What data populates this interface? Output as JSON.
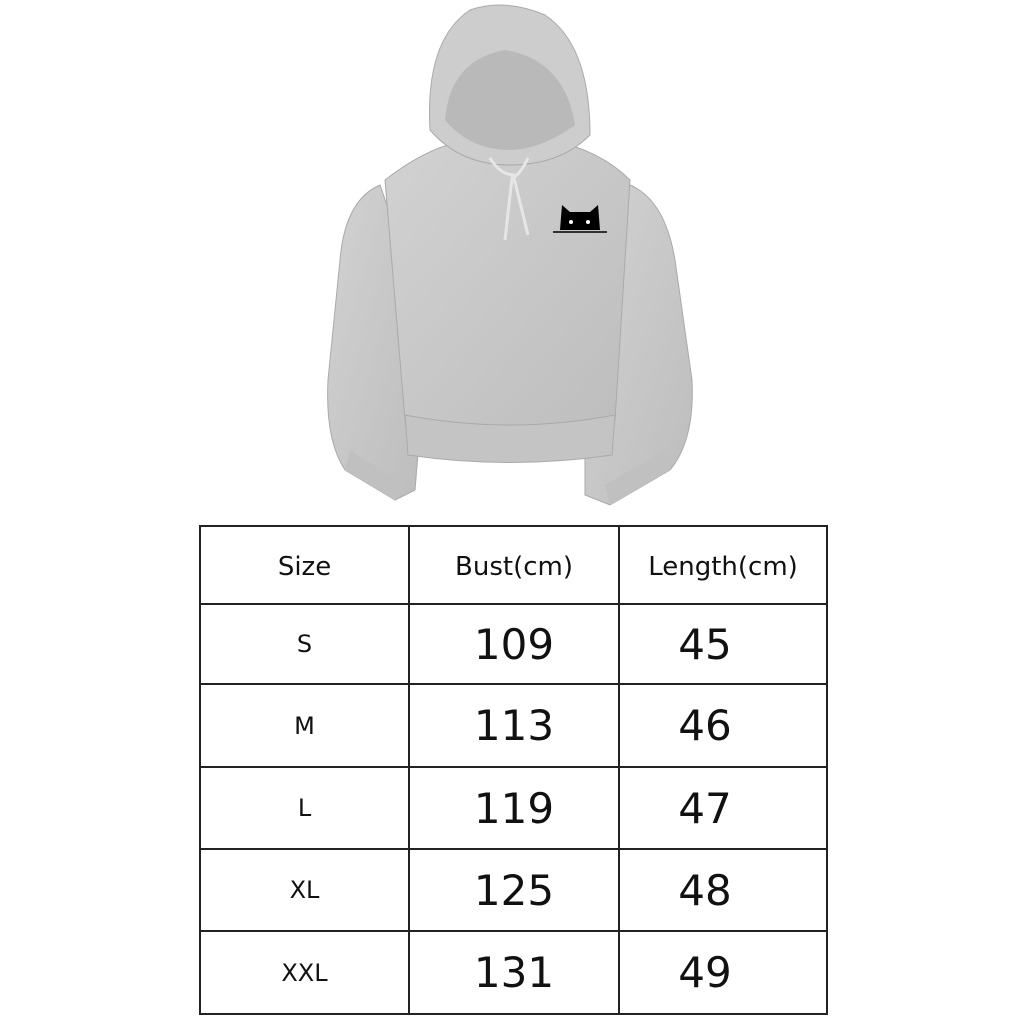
{
  "product": {
    "image": "gray cropped hoodie with drawstring hood and small black peeking cat print on left chest",
    "colors": {
      "hoodie": "#c9c9c9",
      "cat": "#000000",
      "table_border": "#222222"
    }
  },
  "size_chart": {
    "headers": [
      "Size",
      "Bust(cm)",
      "Length(cm)"
    ],
    "rows": [
      {
        "size": "S",
        "bust": "109",
        "length": "45"
      },
      {
        "size": "M",
        "bust": "113",
        "length": "46"
      },
      {
        "size": "L",
        "bust": "119",
        "length": "47"
      },
      {
        "size": "XL",
        "bust": "125",
        "length": "48"
      },
      {
        "size": "XXL",
        "bust": "131",
        "length": "49"
      }
    ]
  }
}
